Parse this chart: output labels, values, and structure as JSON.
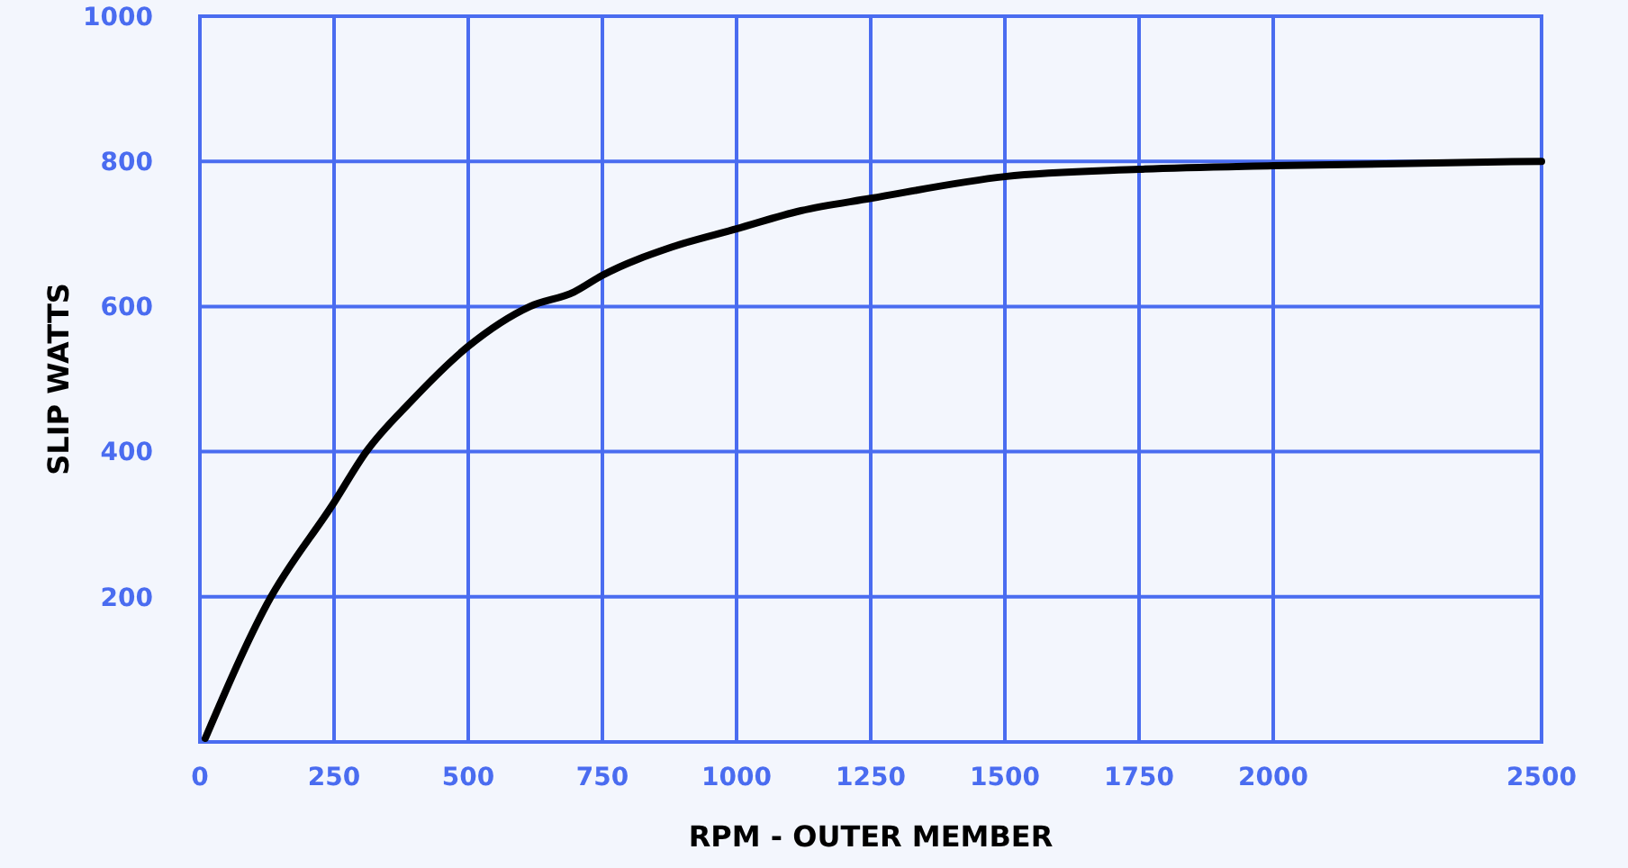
{
  "chart_data": {
    "type": "line",
    "xlabel": "RPM - OUTER MEMBER",
    "ylabel": "SLIP WATTS",
    "xlim": [
      0,
      2500
    ],
    "xticks": [
      0,
      250,
      500,
      750,
      1000,
      1250,
      1500,
      1750,
      2000,
      2500
    ],
    "ylim": [
      0,
      1000
    ],
    "yticks": [
      {
        "value": 0,
        "label": null
      },
      200,
      400,
      600,
      800,
      1000
    ],
    "grid": true,
    "marker": "none",
    "line_style": "solid",
    "series": [
      {
        "color": "#000000",
        "x": [
          10,
          125,
          250,
          310,
          393,
          500,
          615,
          697,
          750,
          880,
          1000,
          1120,
          1250,
          1500,
          1750,
          2000,
          2500
        ],
        "values": [
          5,
          190,
          330,
          400,
          469,
          545,
          600,
          620,
          643,
          682,
          707,
          732,
          749,
          779,
          789,
          794,
          800
        ]
      }
    ]
  }
}
